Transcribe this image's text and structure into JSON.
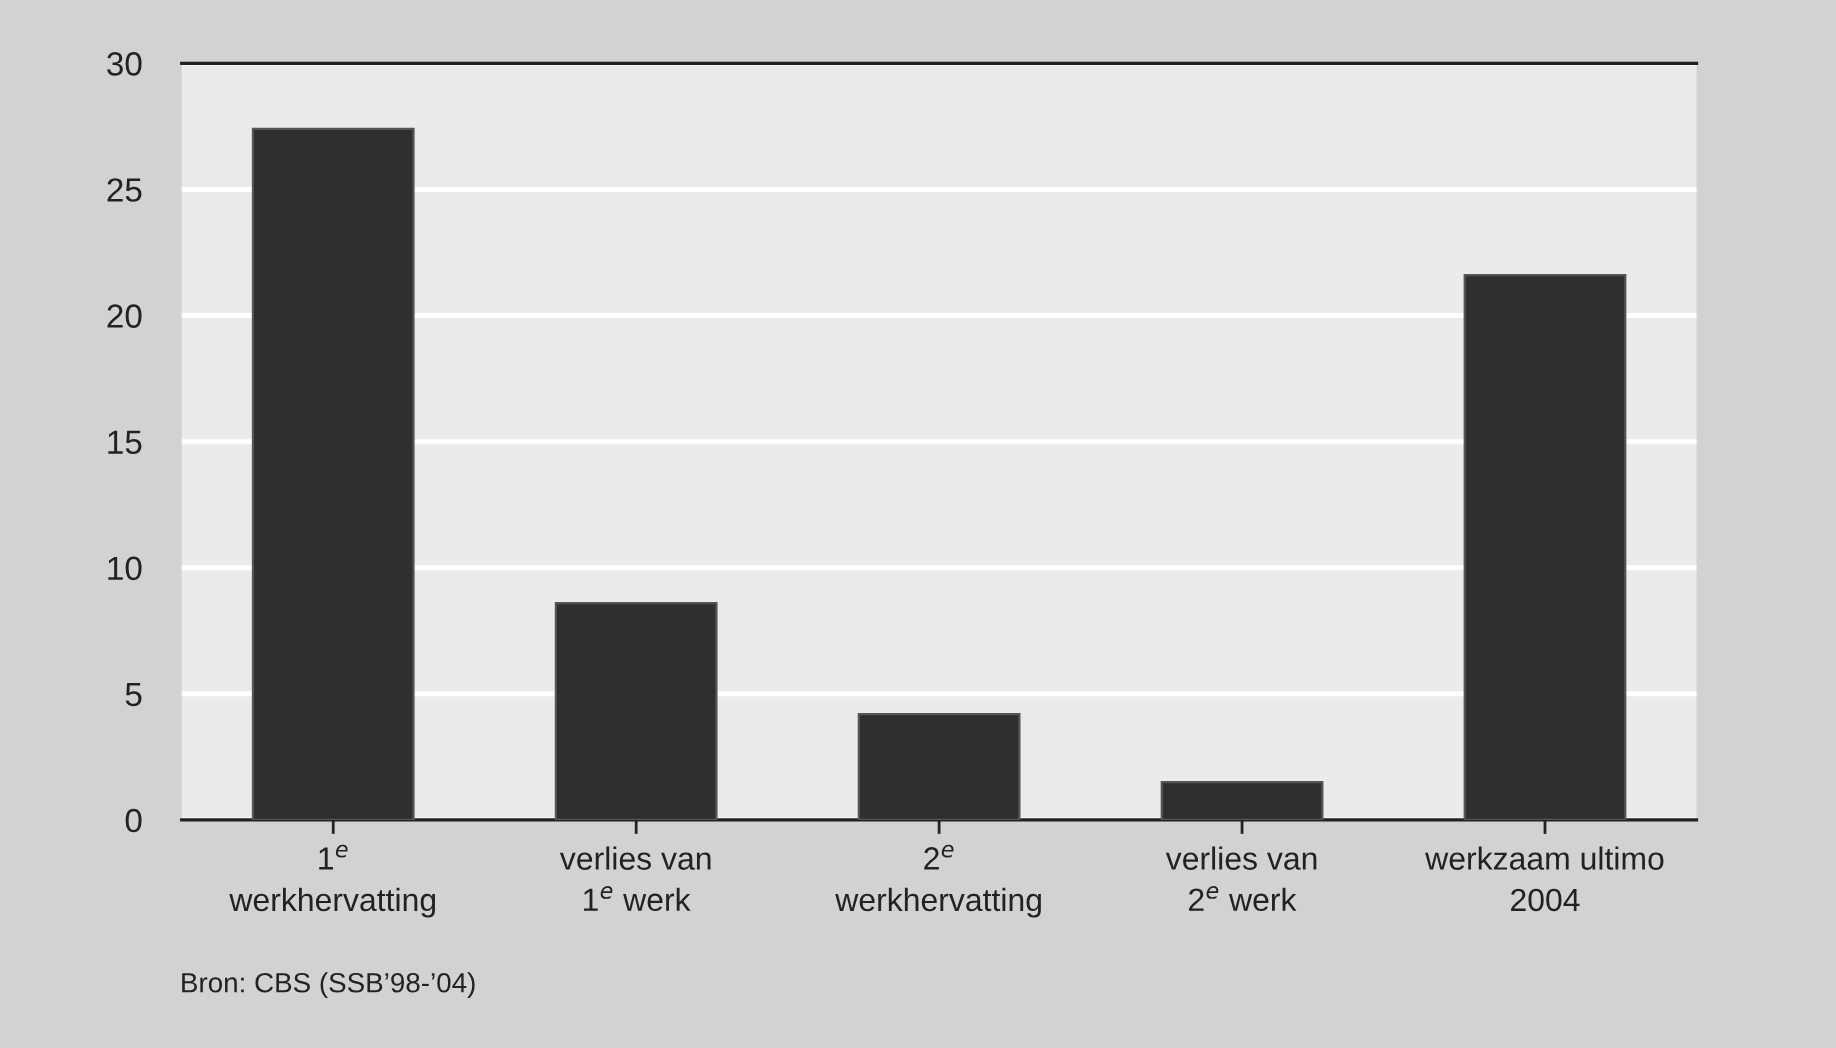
{
  "chart_data": {
    "type": "bar",
    "categories": [
      "1$^{e}$\nwerkhervatting",
      "verlies van\n1$^{e}$ werk",
      "2$^{e}$\nwerkhervatting",
      "verlies van\n2$^{e}$ werk",
      "werkzaam ultimo\n2004"
    ],
    "values": [
      27.4,
      8.6,
      4.2,
      1.5,
      21.6
    ],
    "color": "#302e2f",
    "ylim": [
      0,
      30
    ],
    "yticks": [
      0,
      5,
      10,
      15,
      20,
      25,
      30
    ],
    "grid": "y",
    "annotations": [
      "Bron: CBS (SSB’98-’04)"
    ]
  }
}
